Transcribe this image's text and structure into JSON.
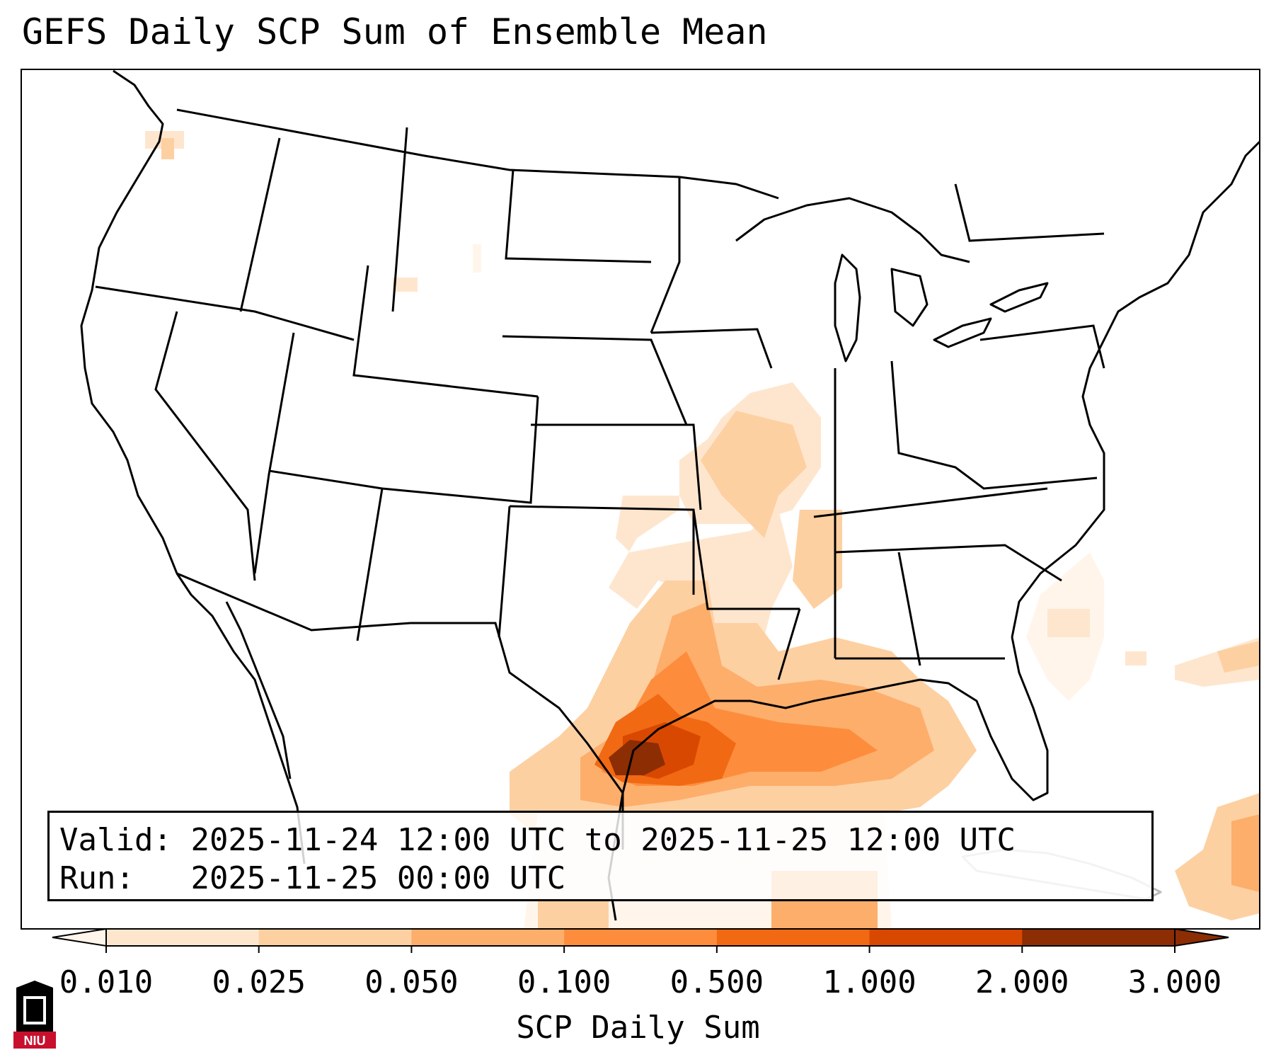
{
  "title": "GEFS Daily SCP Sum of Ensemble Mean",
  "info": {
    "valid_label": "Valid:",
    "valid_text": "2025-11-24 12:00 UTC to 2025-11-25 12:00 UTC",
    "run_label": "Run:",
    "run_text": "2025-11-25 00:00 UTC"
  },
  "colorbar": {
    "label": "SCP Daily Sum",
    "ticks": [
      "0.010",
      "0.025",
      "0.050",
      "0.100",
      "0.500",
      "1.000",
      "2.000",
      "3.000"
    ],
    "colors": [
      "#fff5eb",
      "#fee6ce",
      "#fdd0a2",
      "#fdae6b",
      "#fd8d3c",
      "#f16913",
      "#d94801",
      "#8c2d04"
    ],
    "extend": "both"
  },
  "logo": {
    "text": "NIU",
    "colors": {
      "red": "#c8102e",
      "black": "#000000"
    }
  },
  "colors": {
    "land_outline": "#000000",
    "background": "#ffffff"
  }
}
